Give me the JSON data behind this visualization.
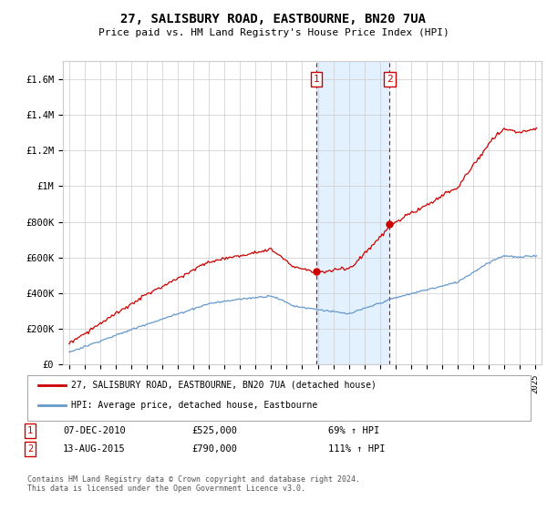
{
  "title": "27, SALISBURY ROAD, EASTBOURNE, BN20 7UA",
  "subtitle": "Price paid vs. HM Land Registry's House Price Index (HPI)",
  "ylabel_ticks": [
    "£0",
    "£200K",
    "£400K",
    "£600K",
    "£800K",
    "£1M",
    "£1.2M",
    "£1.4M",
    "£1.6M"
  ],
  "ytick_values": [
    0,
    200000,
    400000,
    600000,
    800000,
    1000000,
    1200000,
    1400000,
    1600000
  ],
  "ylim": [
    0,
    1700000
  ],
  "legend_line1": "27, SALISBURY ROAD, EASTBOURNE, BN20 7UA (detached house)",
  "legend_line2": "HPI: Average price, detached house, Eastbourne",
  "sale1_label": "1",
  "sale1_date": "07-DEC-2010",
  "sale1_price": "£525,000",
  "sale1_hpi": "69% ↑ HPI",
  "sale2_label": "2",
  "sale2_date": "13-AUG-2015",
  "sale2_price": "£790,000",
  "sale2_hpi": "111% ↑ HPI",
  "footer": "Contains HM Land Registry data © Crown copyright and database right 2024.\nThis data is licensed under the Open Government Licence v3.0.",
  "sale1_year": 2010.917,
  "sale2_year": 2015.625,
  "red_line_color": "#cc0000",
  "blue_line_color": "#6699cc",
  "vline_color": "#cc0000",
  "shade_color": "#ddeeff",
  "background_color": "#ffffff",
  "grid_color": "#cccccc"
}
